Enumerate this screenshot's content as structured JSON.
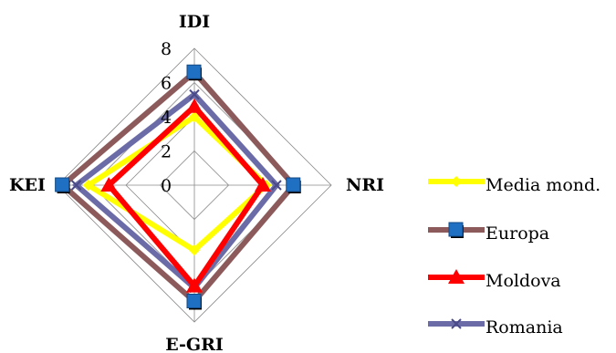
{
  "chart_data": {
    "type": "radar",
    "axes": [
      "IDI",
      "NRI",
      "E-GRI",
      "KEI"
    ],
    "r_ticks": [
      "0",
      "2",
      "4",
      "6",
      "8"
    ],
    "r_range": [
      0,
      8
    ],
    "grid": true,
    "legend_position": "right",
    "series": [
      {
        "name": "Media mond.",
        "color": "#ffff00",
        "marker": "diamond",
        "values": [
          4.0,
          4.2,
          3.8,
          6.2
        ]
      },
      {
        "name": "Europa",
        "color": "#8c5a5a",
        "marker": "square",
        "values": [
          6.6,
          5.8,
          6.8,
          7.7
        ]
      },
      {
        "name": "Moldova",
        "color": "#ff0000",
        "marker": "triangle",
        "values": [
          4.6,
          4.0,
          5.9,
          5.0
        ]
      },
      {
        "name": "Romania",
        "color": "#6b6ba8",
        "marker": "x",
        "values": [
          5.3,
          4.8,
          6.0,
          6.9
        ]
      }
    ]
  }
}
